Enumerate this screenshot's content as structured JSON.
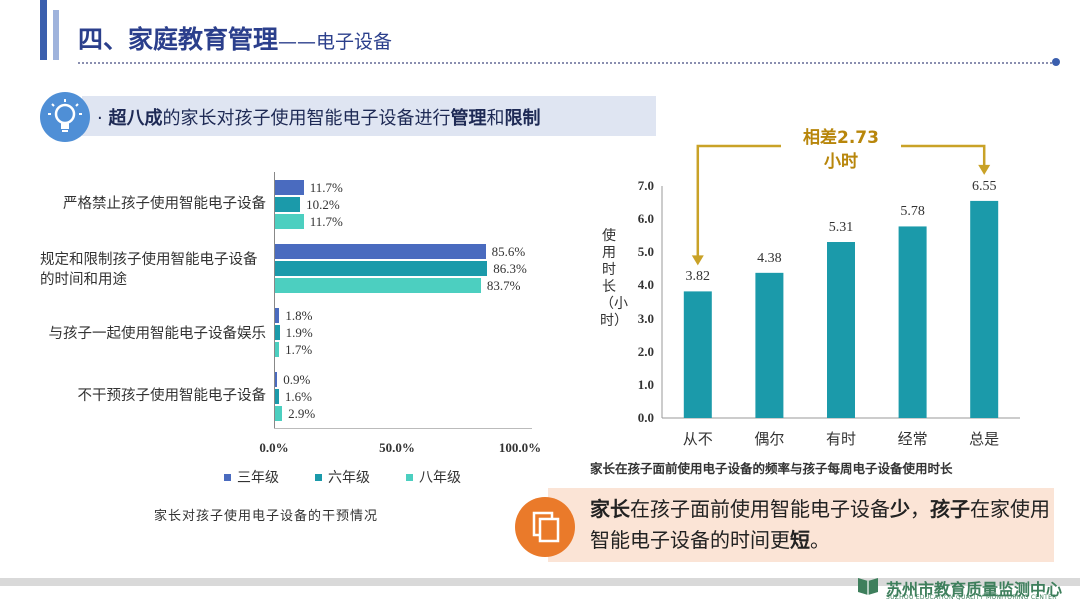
{
  "header": {
    "title": "四、家庭教育管理",
    "subtitle": "——电子设备"
  },
  "headline": {
    "prefix": "· ",
    "part1": "超八成",
    "part2": "的家长对孩子使用智能电子设备进行",
    "part3": "管理",
    "part4": "和",
    "part5": "限制"
  },
  "conclusion": {
    "part1": "家长",
    "part2": "在孩子面前使用智能电子设备",
    "part3": "少",
    "part4": "，",
    "part5": "孩子",
    "part6": "在家使用智能电子设备的时间更",
    "part7": "短",
    "part8": "。"
  },
  "footer": {
    "org": "苏州市教育质量监测中心",
    "org_en": "SUZHOU EDUCATION QUALITY MONITORING CENTER"
  },
  "chart_data": [
    {
      "type": "bar",
      "orientation": "horizontal",
      "title": "家长对孩子使用电子设备的干预情况",
      "categories": [
        "严格禁止孩子使用智能电子设备",
        "规定和限制孩子使用智能电子设备的时间和用途",
        "与孩子一起使用智能电子设备娱乐",
        "不干预孩子使用智能电子设备"
      ],
      "series": [
        {
          "name": "三年级",
          "color": "#4a6bbf",
          "values": [
            11.7,
            85.6,
            1.8,
            0.9
          ]
        },
        {
          "name": "六年级",
          "color": "#1b9aaa",
          "values": [
            10.2,
            86.3,
            1.9,
            1.6
          ]
        },
        {
          "name": "八年级",
          "color": "#4ccfc0",
          "values": [
            11.7,
            83.7,
            1.7,
            2.9
          ]
        }
      ],
      "value_labels": [
        [
          "11.7%",
          "10.2%",
          "11.7%"
        ],
        [
          "85.6%",
          "86.3%",
          "83.7%"
        ],
        [
          "1.8%",
          "1.9%",
          "1.7%"
        ],
        [
          "0.9%",
          "1.6%",
          "2.9%"
        ]
      ],
      "xlim": [
        0,
        100
      ],
      "xticks": [
        "0.0%",
        "50.0%",
        "100.0%"
      ],
      "legend_position": "bottom"
    },
    {
      "type": "bar",
      "orientation": "vertical",
      "title": "家长在孩子面前使用电子设备的频率与孩子每周电子设备使用时长",
      "categories": [
        "从不",
        "偶尔",
        "有时",
        "经常",
        "总是"
      ],
      "values": [
        3.82,
        4.38,
        5.31,
        5.78,
        6.55
      ],
      "value_labels": [
        "3.82",
        "4.38",
        "5.31",
        "5.78",
        "6.55"
      ],
      "color": "#1b9aaa",
      "ylabel": "使用时长（小时）",
      "ylim": [
        0,
        7
      ],
      "yticks": [
        "0.0",
        "1.0",
        "2.0",
        "3.0",
        "4.0",
        "5.0",
        "6.0",
        "7.0"
      ],
      "annotation": {
        "line1": "相差2.73",
        "line2": "小时"
      }
    }
  ]
}
